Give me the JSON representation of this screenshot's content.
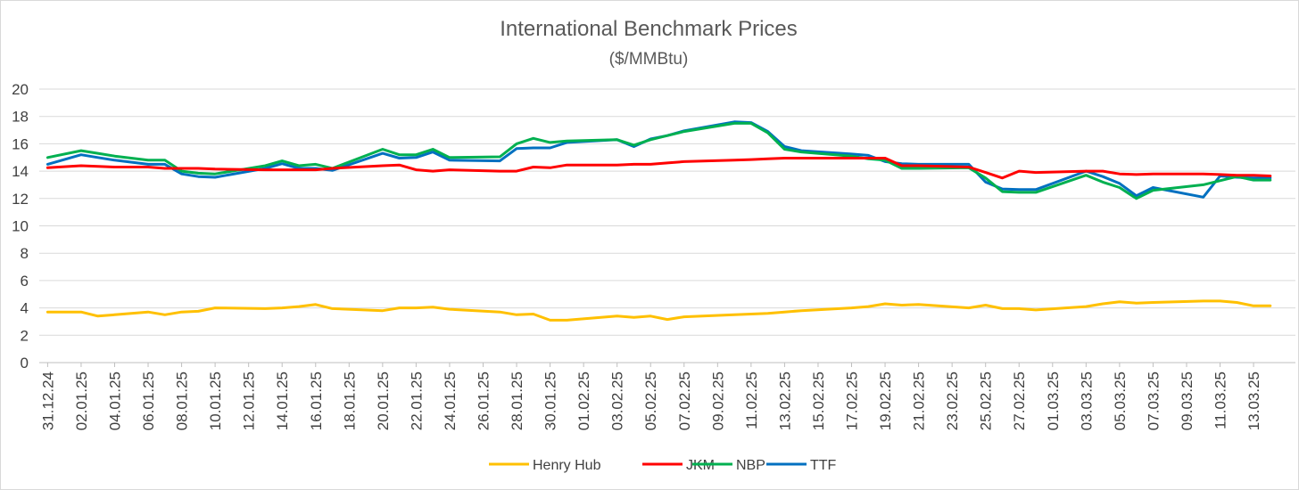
{
  "chart_data": {
    "type": "line",
    "title": "International Benchmark Prices",
    "subtitle": "($/MMBtu)",
    "xlabel": "",
    "ylabel": "",
    "ylim": [
      0,
      20
    ],
    "yticks": [
      0,
      2,
      4,
      6,
      8,
      10,
      12,
      14,
      16,
      18,
      20
    ],
    "grid": "horizontal",
    "legend": "bottom",
    "x": [
      "31.12.24",
      "02.01.25",
      "03.01.25",
      "04.01.25",
      "06.01.25",
      "07.01.25",
      "08.01.25",
      "09.01.25",
      "10.01.25",
      "13.01.25",
      "14.01.25",
      "15.01.25",
      "16.01.25",
      "17.01.25",
      "20.01.25",
      "21.01.25",
      "22.01.25",
      "23.01.25",
      "24.01.25",
      "27.01.25",
      "28.01.25",
      "29.01.25",
      "30.01.25",
      "31.01.25",
      "03.02.25",
      "04.02.25",
      "05.02.25",
      "06.02.25",
      "07.02.25",
      "10.02.25",
      "11.02.25",
      "12.02.25",
      "13.02.25",
      "14.02.25",
      "17.02.25",
      "18.02.25",
      "19.02.25",
      "20.02.25",
      "21.02.25",
      "24.02.25",
      "25.02.25",
      "26.02.25",
      "27.02.25",
      "28.02.25",
      "03.03.25",
      "04.03.25",
      "05.03.25",
      "06.03.25",
      "07.03.25",
      "10.03.25",
      "11.03.25",
      "12.03.25",
      "13.03.25",
      "14.03.25"
    ],
    "xticks": [
      "31.12.24",
      "02.01.25",
      "04.01.25",
      "06.01.25",
      "08.01.25",
      "10.01.25",
      "12.01.25",
      "14.01.25",
      "16.01.25",
      "18.01.25",
      "20.01.25",
      "22.01.25",
      "24.01.25",
      "26.01.25",
      "28.01.25",
      "30.01.25",
      "01.02.25",
      "03.02.25",
      "05.02.25",
      "07.02.25",
      "09.02.25",
      "11.02.25",
      "13.02.25",
      "15.02.25",
      "17.02.25",
      "19.02.25",
      "21.02.25",
      "23.02.25",
      "25.02.25",
      "27.02.25",
      "01.03.25",
      "03.03.25",
      "05.03.25",
      "07.03.25",
      "09.03.25",
      "11.03.25",
      "13.03.25"
    ],
    "series": [
      {
        "name": "Henry Hub",
        "color": "#FFC000",
        "values": [
          3.7,
          3.7,
          3.4,
          3.5,
          3.7,
          3.5,
          3.7,
          3.75,
          4.0,
          3.95,
          4.0,
          4.1,
          4.25,
          3.95,
          3.8,
          4.0,
          4.0,
          4.05,
          3.9,
          3.7,
          3.5,
          3.55,
          3.1,
          3.1,
          3.4,
          3.3,
          3.4,
          3.15,
          3.35,
          3.5,
          3.55,
          3.6,
          3.7,
          3.8,
          4.0,
          4.1,
          4.3,
          4.2,
          4.25,
          4.0,
          4.2,
          3.95,
          3.95,
          3.85,
          4.1,
          4.3,
          4.45,
          4.35,
          4.4,
          4.5,
          4.5,
          4.4,
          4.15,
          4.15
        ]
      },
      {
        "name": "JKM",
        "color": "#FF0000",
        "values": [
          14.25,
          14.4,
          14.35,
          14.3,
          14.3,
          14.2,
          14.2,
          14.2,
          14.15,
          14.1,
          14.1,
          14.1,
          14.1,
          14.2,
          14.4,
          14.45,
          14.1,
          14.0,
          14.1,
          14.0,
          14.0,
          14.3,
          14.25,
          14.45,
          14.45,
          14.5,
          14.5,
          14.6,
          14.7,
          14.8,
          14.85,
          14.9,
          14.95,
          14.95,
          14.95,
          14.95,
          14.95,
          14.4,
          14.4,
          14.3,
          13.9,
          13.5,
          14.0,
          13.9,
          14.0,
          14.0,
          13.8,
          13.75,
          13.8,
          13.8,
          13.75,
          13.7,
          13.7,
          13.65
        ]
      },
      {
        "name": "NBP",
        "color": "#00B050",
        "values": [
          15.0,
          15.5,
          15.3,
          15.1,
          14.8,
          14.8,
          14.0,
          13.85,
          13.8,
          14.4,
          14.75,
          14.4,
          14.5,
          14.2,
          15.6,
          15.2,
          15.2,
          15.6,
          15.0,
          15.05,
          16.0,
          16.4,
          16.1,
          16.2,
          16.3,
          15.9,
          16.3,
          16.6,
          16.9,
          17.5,
          17.5,
          16.8,
          15.6,
          15.4,
          15.1,
          14.9,
          14.8,
          14.2,
          14.2,
          14.25,
          13.5,
          12.5,
          12.45,
          12.45,
          13.7,
          13.2,
          12.8,
          12.0,
          12.6,
          13.0,
          13.3,
          13.6,
          13.35,
          13.35
        ]
      },
      {
        "name": "TTF",
        "color": "#0070C0",
        "values": [
          14.5,
          15.2,
          15.0,
          14.8,
          14.5,
          14.5,
          13.8,
          13.6,
          13.55,
          14.2,
          14.55,
          14.2,
          14.2,
          14.05,
          15.3,
          14.95,
          15.0,
          15.4,
          14.8,
          14.75,
          15.65,
          15.7,
          15.7,
          16.1,
          16.3,
          15.8,
          16.35,
          16.6,
          16.95,
          17.6,
          17.55,
          16.9,
          15.8,
          15.5,
          15.25,
          15.15,
          14.7,
          14.55,
          14.5,
          14.5,
          13.2,
          12.7,
          12.65,
          12.65,
          14.0,
          13.6,
          13.1,
          12.2,
          12.8,
          12.1,
          13.65,
          13.55,
          13.5,
          13.5
        ]
      }
    ]
  }
}
